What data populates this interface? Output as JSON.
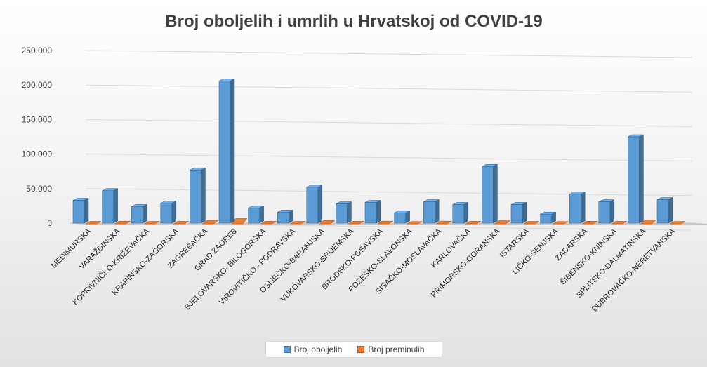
{
  "chart_data": {
    "type": "bar",
    "title": "Broj oboljelih i umrlih u Hrvatskoj od COVID-19",
    "xlabel": "",
    "ylabel": "",
    "ylim": [
      0,
      250000
    ],
    "yticks": [
      0,
      50000,
      100000,
      150000,
      200000,
      250000
    ],
    "ytick_labels": [
      "0",
      "50.000",
      "100.000",
      "150.000",
      "200.000",
      "250.000"
    ],
    "grid": true,
    "legend_position": "bottom",
    "categories": [
      "MEĐIMURSKA",
      "VARAŽDINSKA",
      "KOPRIVNIČKO-KRIŽEVAČKA",
      "KRAPINSKO-ZAGORSKA",
      "ZAGREBAČKA",
      "GRAD ZAGREB",
      "BJELOVARSKO- BILOGORSKA",
      "VIROVITIČKO - PODRAVSKA",
      "OSIJEČKO-BARANJSKA",
      "VUKOVARSKO-SRIJEMSKA",
      "BRODSKO-POSAVSKA",
      "POŽEŠKO-SLAVONSKA",
      "SISAČKO-MOSLAVAČKA",
      "KARLOVAČKA",
      "PRIMORSKO-GORANSKA",
      "ISTARSKA",
      "LIČKO-SENJSKA",
      "ZADARSKA",
      "ŠIBENSKO-KNINSKA",
      "SPLITSKO-DALMATINSKA",
      "DUBROVAČKO-NERETVANSKA"
    ],
    "series": [
      {
        "name": "Broj oboljelih",
        "color": "#5b9bd5",
        "values": [
          33000,
          47000,
          24000,
          29000,
          77000,
          206000,
          22000,
          16000,
          52000,
          28000,
          30000,
          15000,
          31000,
          27000,
          82000,
          27000,
          13000,
          42000,
          31000,
          125000,
          34000
        ]
      },
      {
        "name": "Broj preminulih",
        "color": "#ed7d31",
        "values": [
          500,
          800,
          500,
          600,
          1600,
          5000,
          600,
          500,
          1700,
          700,
          900,
          300,
          900,
          700,
          1500,
          500,
          300,
          700,
          600,
          2400,
          400
        ]
      }
    ]
  }
}
